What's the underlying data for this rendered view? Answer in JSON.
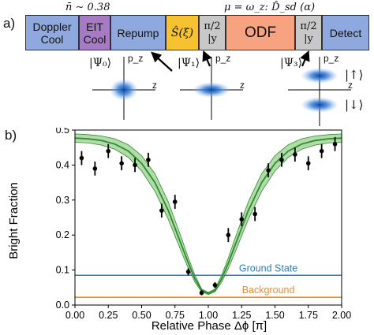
{
  "panel_a": {
    "label": "a)",
    "above_left": "n̄ ∼ 0.38",
    "above_right": "μ = ω_z: D̂_sd (α)",
    "blocks": [
      {
        "label": "Doppler Cool",
        "color": "#8fa9df"
      },
      {
        "label": "EIT Cool",
        "color": "#a77bc4"
      },
      {
        "label": "Repump",
        "color": "#8fa9df"
      },
      {
        "label": "Ŝ(ξ)",
        "color": "#f7c232"
      },
      {
        "label": "π/2 |y",
        "color": "#c8c8c8"
      },
      {
        "label": "ODF",
        "color": "#f7a382"
      },
      {
        "label": "π/2 |y",
        "color": "#c8c8c8"
      },
      {
        "label": "Detect",
        "color": "#8fa9df"
      }
    ],
    "states": [
      {
        "label": "|Ψ₀⟩",
        "axis_y": "p_z",
        "axis_x": "z"
      },
      {
        "label": "|Ψ₁⟩",
        "axis_y": "p_z",
        "axis_x": "z"
      },
      {
        "label": "|Ψ₃⟩",
        "axis_y": "p_z",
        "axis_x": "z",
        "spin_up": "|↑⟩",
        "spin_down": "|↓⟩"
      }
    ]
  },
  "panel_b": {
    "label": "b)"
  },
  "chart_data": {
    "type": "line",
    "xlabel": "Relative Phase Δϕ [π]",
    "ylabel": "Bright Fraction",
    "xlim": [
      0,
      2
    ],
    "ylim": [
      0,
      0.5
    ],
    "xticks": [
      "0.00",
      "0.25",
      "0.50",
      "0.75",
      "1.00",
      "1.25",
      "1.50",
      "1.75",
      "2.00"
    ],
    "yticks": [
      "0.0",
      "0.1",
      "0.2",
      "0.3",
      "0.4",
      "0.5"
    ],
    "theory": {
      "x": [
        0,
        0.1,
        0.2,
        0.3,
        0.4,
        0.5,
        0.6,
        0.7,
        0.8,
        0.85,
        0.9,
        0.95,
        1.0,
        1.05,
        1.1,
        1.15,
        1.2,
        1.3,
        1.4,
        1.5,
        1.6,
        1.7,
        1.8,
        1.9,
        2.0
      ],
      "y": [
        0.477,
        0.475,
        0.47,
        0.46,
        0.44,
        0.405,
        0.35,
        0.27,
        0.17,
        0.12,
        0.075,
        0.042,
        0.033,
        0.042,
        0.075,
        0.12,
        0.17,
        0.27,
        0.35,
        0.405,
        0.44,
        0.46,
        0.47,
        0.475,
        0.477
      ],
      "band_lo": [
        0.465,
        0.463,
        0.457,
        0.445,
        0.422,
        0.383,
        0.325,
        0.245,
        0.15,
        0.105,
        0.065,
        0.038,
        0.03,
        0.038,
        0.065,
        0.105,
        0.15,
        0.245,
        0.325,
        0.383,
        0.422,
        0.445,
        0.457,
        0.463,
        0.465
      ],
      "band_hi": [
        0.489,
        0.487,
        0.483,
        0.475,
        0.458,
        0.427,
        0.375,
        0.295,
        0.19,
        0.135,
        0.085,
        0.046,
        0.036,
        0.046,
        0.085,
        0.135,
        0.19,
        0.295,
        0.375,
        0.427,
        0.458,
        0.475,
        0.483,
        0.487,
        0.489
      ],
      "color": "#2e8b2e",
      "band_color": "#a8d8a0"
    },
    "points": [
      {
        "x": 0.05,
        "y": 0.42,
        "err": 0.02
      },
      {
        "x": 0.15,
        "y": 0.39,
        "err": 0.02
      },
      {
        "x": 0.25,
        "y": 0.44,
        "err": 0.02
      },
      {
        "x": 0.35,
        "y": 0.405,
        "err": 0.02
      },
      {
        "x": 0.45,
        "y": 0.4,
        "err": 0.02
      },
      {
        "x": 0.55,
        "y": 0.415,
        "err": 0.02
      },
      {
        "x": 0.65,
        "y": 0.27,
        "err": 0.02
      },
      {
        "x": 0.75,
        "y": 0.295,
        "err": 0.02
      },
      {
        "x": 0.85,
        "y": 0.095,
        "err": 0.01
      },
      {
        "x": 0.95,
        "y": 0.035,
        "err": 0.007
      },
      {
        "x": 1.05,
        "y": 0.057,
        "err": 0.008
      },
      {
        "x": 1.15,
        "y": 0.2,
        "err": 0.02
      },
      {
        "x": 1.25,
        "y": 0.245,
        "err": 0.02
      },
      {
        "x": 1.35,
        "y": 0.26,
        "err": 0.02
      },
      {
        "x": 1.45,
        "y": 0.385,
        "err": 0.02
      },
      {
        "x": 1.55,
        "y": 0.415,
        "err": 0.02
      },
      {
        "x": 1.65,
        "y": 0.43,
        "err": 0.02
      },
      {
        "x": 1.75,
        "y": 0.405,
        "err": 0.02
      },
      {
        "x": 1.85,
        "y": 0.44,
        "err": 0.02
      },
      {
        "x": 1.95,
        "y": 0.46,
        "err": 0.02
      }
    ],
    "hlines": [
      {
        "name": "Ground State",
        "y": 0.085,
        "color": "#2c7fb8"
      },
      {
        "name": "Background",
        "y": 0.022,
        "color": "#f08a24"
      }
    ]
  }
}
